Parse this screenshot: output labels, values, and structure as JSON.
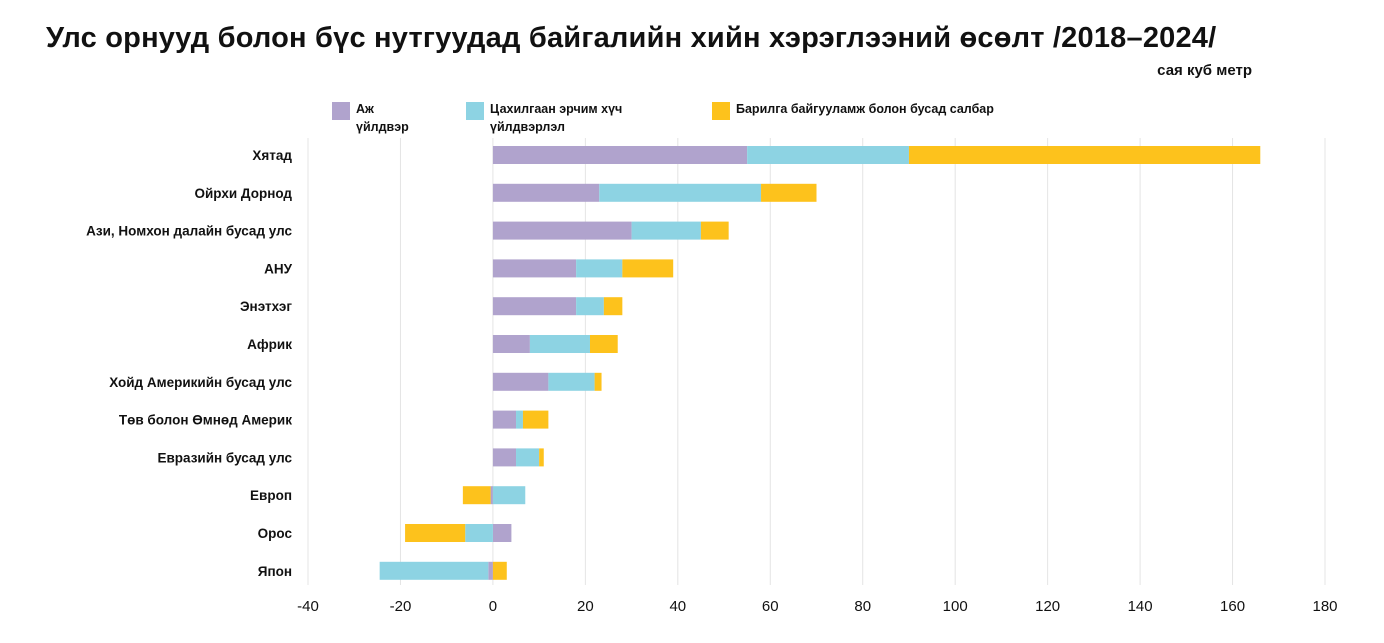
{
  "title": "Улс орнууд болон бүс нутгуудад байгалийн хийн хэрэглээний өсөлт /2018–2024/",
  "unit": "сая куб метр",
  "colors": {
    "industry": "#b0a3cd",
    "power": "#8dd3e3",
    "buildings": "#fdc21c",
    "grid": "#e4e4e4",
    "negative_tick": "#e8173c"
  },
  "chart_data": {
    "type": "bar",
    "orientation": "horizontal",
    "stacked": true,
    "title": "Улс орнууд болон бүс нутгуудад байгалийн хийн хэрэглээний өсөлт /2018–2024/",
    "unit": "сая куб метр",
    "categories": [
      "Хятад",
      "Ойрхи Дорнод",
      "Ази, Номхон далайн бусад улс",
      "АНУ",
      "Энэтхэг",
      "Африк",
      "Хойд Америкийн бусад улс",
      "Төв болон Өмнөд Америк",
      "Евразийн бусад улс",
      "Европ",
      "Орос",
      "Япон"
    ],
    "series": [
      {
        "name": "Аж үйлдвэр",
        "color": "#b0a3cd",
        "values": [
          55,
          23,
          30,
          18,
          18,
          8,
          12,
          5,
          5,
          -0.5,
          4,
          -1
        ]
      },
      {
        "name": "Цахилгаан эрчим хүч үйлдвэрлэл",
        "color": "#8dd3e3",
        "values": [
          35,
          35,
          15,
          10,
          6,
          13,
          10,
          1.5,
          5,
          7,
          -6,
          -23.5
        ]
      },
      {
        "name": "Барилга байгууламж болон бусад салбар",
        "color": "#fdc21c",
        "values": [
          76,
          12,
          6,
          11,
          4,
          6,
          1.5,
          5.5,
          1,
          -6,
          -13,
          3
        ]
      }
    ],
    "xlim": [
      -40,
      180
    ],
    "xticks": [
      -40,
      -20,
      0,
      20,
      40,
      60,
      80,
      100,
      120,
      140,
      160,
      180
    ],
    "grid": true,
    "legend_position": "top"
  }
}
